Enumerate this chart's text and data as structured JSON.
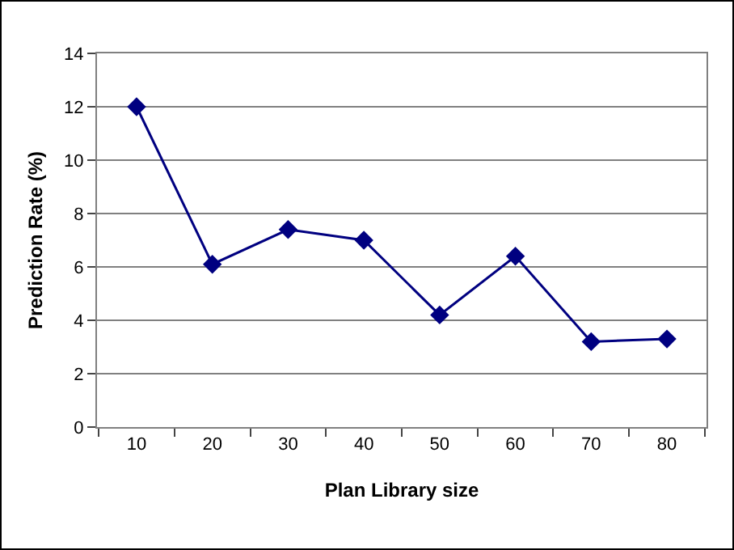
{
  "chart_data": {
    "type": "line",
    "xlabel": "Plan Library size",
    "ylabel": "Prediction Rate (%)",
    "categories": [
      "10",
      "20",
      "30",
      "40",
      "50",
      "60",
      "70",
      "80"
    ],
    "series": [
      {
        "color": "#000080",
        "values": [
          12,
          6.1,
          7.4,
          7.0,
          4.2,
          6.4,
          3.2,
          3.3
        ]
      }
    ],
    "ylim": [
      0,
      14
    ],
    "yticks": [
      0,
      2,
      4,
      6,
      8,
      10,
      12,
      14
    ],
    "grid": "y",
    "marker": "diamond",
    "line_style": "solid"
  }
}
